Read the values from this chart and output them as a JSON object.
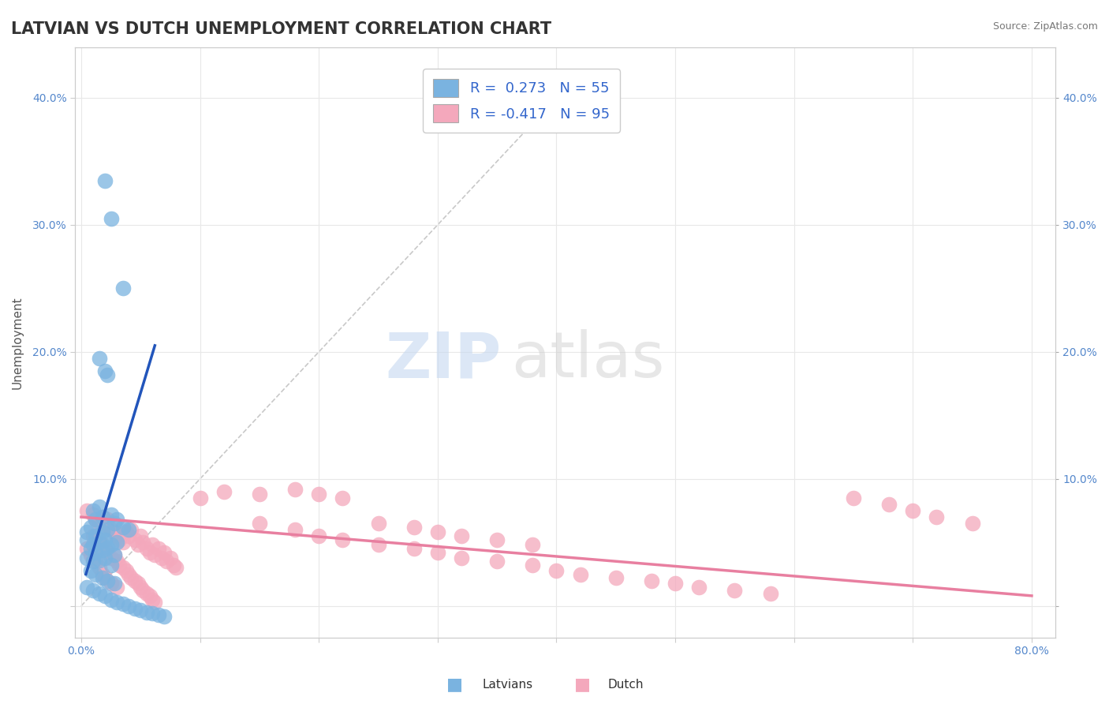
{
  "title": "LATVIAN VS DUTCH UNEMPLOYMENT CORRELATION CHART",
  "source_text": "Source: ZipAtlas.com",
  "ylabel": "Unemployment",
  "xlim": [
    -0.005,
    0.82
  ],
  "ylim": [
    -0.025,
    0.44
  ],
  "latvian_color": "#7ab3e0",
  "dutch_color": "#f4a8bc",
  "latvian_line_color": "#2255bb",
  "dutch_line_color": "#e87fa0",
  "legend_text_color": "#3366cc",
  "latvian_R": 0.273,
  "latvian_N": 55,
  "dutch_R": -0.417,
  "dutch_N": 95,
  "legend_label_latvians": "Latvians",
  "legend_label_dutch": "Dutch",
  "watermark_zip": "ZIP",
  "watermark_atlas": "atlas",
  "background_color": "#ffffff",
  "grid_color": "#e8e8e8",
  "title_fontsize": 15,
  "axis_fontsize": 11,
  "tick_fontsize": 10,
  "tick_color": "#5588cc",
  "latvian_scatter_x": [
    0.02,
    0.025,
    0.035,
    0.015,
    0.02,
    0.022,
    0.01,
    0.015,
    0.012,
    0.018,
    0.025,
    0.03,
    0.008,
    0.005,
    0.012,
    0.018,
    0.022,
    0.028,
    0.035,
    0.04,
    0.005,
    0.01,
    0.015,
    0.02,
    0.025,
    0.03,
    0.008,
    0.012,
    0.018,
    0.022,
    0.028,
    0.005,
    0.01,
    0.015,
    0.02,
    0.025,
    0.008,
    0.012,
    0.018,
    0.022,
    0.028,
    0.005,
    0.01,
    0.015,
    0.02,
    0.025,
    0.03,
    0.035,
    0.04,
    0.045,
    0.05,
    0.055,
    0.06,
    0.065,
    0.07
  ],
  "latvian_scatter_y": [
    0.335,
    0.305,
    0.25,
    0.195,
    0.185,
    0.182,
    0.075,
    0.078,
    0.068,
    0.07,
    0.072,
    0.068,
    0.062,
    0.058,
    0.055,
    0.058,
    0.06,
    0.065,
    0.062,
    0.06,
    0.052,
    0.048,
    0.05,
    0.052,
    0.048,
    0.05,
    0.045,
    0.042,
    0.044,
    0.046,
    0.04,
    0.038,
    0.035,
    0.036,
    0.038,
    0.032,
    0.028,
    0.025,
    0.022,
    0.02,
    0.018,
    0.015,
    0.012,
    0.01,
    0.008,
    0.005,
    0.003,
    0.002,
    0.0,
    -0.002,
    -0.003,
    -0.005,
    -0.006,
    -0.007,
    -0.008
  ],
  "dutch_scatter_x": [
    0.005,
    0.01,
    0.012,
    0.015,
    0.018,
    0.02,
    0.022,
    0.025,
    0.028,
    0.03,
    0.032,
    0.035,
    0.038,
    0.04,
    0.042,
    0.045,
    0.048,
    0.05,
    0.052,
    0.055,
    0.058,
    0.06,
    0.062,
    0.065,
    0.068,
    0.07,
    0.072,
    0.075,
    0.078,
    0.08,
    0.01,
    0.015,
    0.018,
    0.02,
    0.022,
    0.025,
    0.028,
    0.03,
    0.032,
    0.035,
    0.038,
    0.04,
    0.042,
    0.045,
    0.048,
    0.05,
    0.052,
    0.055,
    0.058,
    0.06,
    0.062,
    0.005,
    0.008,
    0.01,
    0.012,
    0.015,
    0.018,
    0.02,
    0.025,
    0.03,
    0.1,
    0.12,
    0.15,
    0.18,
    0.2,
    0.22,
    0.15,
    0.18,
    0.2,
    0.22,
    0.25,
    0.28,
    0.3,
    0.32,
    0.35,
    0.38,
    0.4,
    0.42,
    0.45,
    0.48,
    0.5,
    0.52,
    0.55,
    0.58,
    0.25,
    0.28,
    0.3,
    0.32,
    0.35,
    0.38,
    0.65,
    0.68,
    0.7,
    0.72,
    0.75
  ],
  "dutch_scatter_y": [
    0.075,
    0.072,
    0.068,
    0.065,
    0.07,
    0.062,
    0.068,
    0.06,
    0.058,
    0.055,
    0.052,
    0.05,
    0.058,
    0.055,
    0.06,
    0.052,
    0.048,
    0.055,
    0.05,
    0.045,
    0.042,
    0.048,
    0.04,
    0.045,
    0.038,
    0.042,
    0.035,
    0.038,
    0.032,
    0.03,
    0.055,
    0.052,
    0.048,
    0.045,
    0.042,
    0.038,
    0.04,
    0.035,
    0.032,
    0.03,
    0.028,
    0.025,
    0.022,
    0.02,
    0.018,
    0.015,
    0.012,
    0.01,
    0.008,
    0.005,
    0.003,
    0.045,
    0.04,
    0.038,
    0.035,
    0.03,
    0.025,
    0.022,
    0.018,
    0.015,
    0.085,
    0.09,
    0.088,
    0.092,
    0.088,
    0.085,
    0.065,
    0.06,
    0.055,
    0.052,
    0.048,
    0.045,
    0.042,
    0.038,
    0.035,
    0.032,
    0.028,
    0.025,
    0.022,
    0.02,
    0.018,
    0.015,
    0.012,
    0.01,
    0.065,
    0.062,
    0.058,
    0.055,
    0.052,
    0.048,
    0.085,
    0.08,
    0.075,
    0.07,
    0.065
  ],
  "latvian_trend_x": [
    0.004,
    0.062
  ],
  "latvian_trend_y": [
    0.025,
    0.205
  ],
  "dutch_trend_x": [
    0.0,
    0.8
  ],
  "dutch_trend_y": [
    0.07,
    0.008
  ],
  "diag_line_x": [
    0.0,
    0.42
  ],
  "diag_line_y": [
    0.0,
    0.42
  ]
}
